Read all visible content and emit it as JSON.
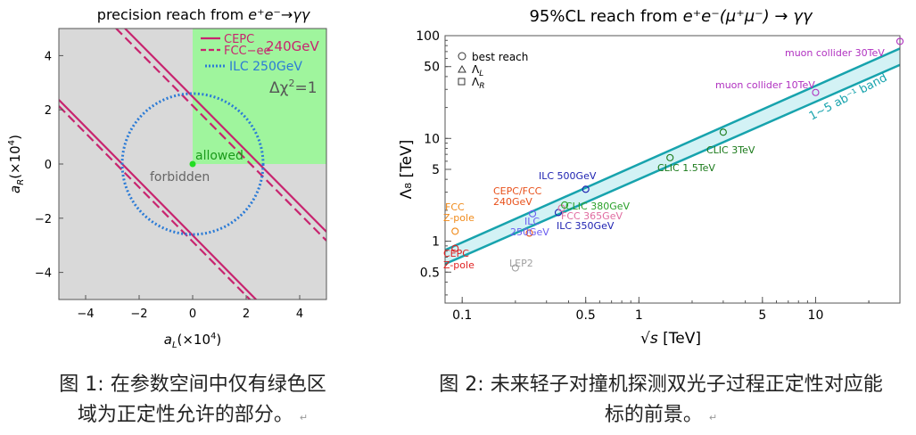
{
  "figure1": {
    "title_text": "precision reach from ",
    "title_math": "e⁺e⁻→γγ",
    "xlabel": "a_L(×10⁴)",
    "ylabel": "a_R(×10⁴)",
    "xlabel_main": "a",
    "xlabel_sub": "L",
    "xlabel_rest": "(×10",
    "xlabel_exp": "4",
    "xlabel_close": ")",
    "ylabel_main": "a",
    "ylabel_sub": "R",
    "ylabel_rest": "(×10",
    "ylabel_exp": "4",
    "ylabel_close": ")",
    "legend": {
      "cepc": "CEPC",
      "fcc": "FCC−ee",
      "energy1": "240GeV",
      "ilc": "ILC 250GeV",
      "chi": "Δχ",
      "chi_exp": "2",
      "chi_rest": "=1"
    },
    "labels": {
      "allowed": "allowed",
      "forbidden": "forbidden"
    },
    "colors": {
      "cepc": "#c8246f",
      "ilc": "#2b7bd6",
      "allowed": "#9ff59d",
      "forbidden": "#d9d9d9",
      "allowed_text": "#1a9a1a"
    },
    "chart_data": {
      "type": "region-plot",
      "xlim": [
        -5,
        5
      ],
      "ylim": [
        -5,
        5
      ],
      "xticks": [
        "−4",
        "−2",
        "0",
        "2",
        "4"
      ],
      "yticks": [
        "4",
        "2",
        "0",
        "−2",
        "−4"
      ],
      "xtick_values": [
        -4,
        -2,
        0,
        2,
        4
      ],
      "ytick_values": [
        4,
        2,
        0,
        -2,
        -4
      ],
      "allowed_region": {
        "x_min": 0,
        "y_min": 0
      },
      "series": [
        {
          "name": "CEPC",
          "style": "solid",
          "lines": [
            {
              "x1": -5,
              "y1": 7.5,
              "x2": 5,
              "y2": -2.5
            },
            {
              "x1": -5,
              "y1": 2.4,
              "x2": 5,
              "y2": -7.6
            }
          ]
        },
        {
          "name": "FCC−ee",
          "style": "dashed",
          "lines": [
            {
              "x1": -5,
              "y1": 7.7,
              "x2": 5,
              "y2": -2.3
            },
            {
              "x1": -5,
              "y1": 2.2,
              "x2": 5,
              "y2": -7.8
            }
          ]
        },
        {
          "name": "ILC 250GeV",
          "style": "dotted",
          "circle": {
            "cx": 0,
            "cy": 0,
            "r": 2.65
          }
        }
      ],
      "points": [
        {
          "x": 0,
          "y": 0,
          "label": "allowed"
        }
      ]
    }
  },
  "figure2": {
    "title_pre": "95%CL reach from ",
    "title_math": "e⁺e⁻(μ⁺μ⁻) → γγ",
    "xlabel": "√s [TeV]",
    "xlabel_sym": "√s",
    "xlabel_unit": " [TeV]",
    "ylabel": "Λ₈ [TeV]",
    "legend": {
      "best": "best reach",
      "lam_l": "Λ",
      "lam_l_sub": "L",
      "lam_r": "Λ",
      "lam_r_sub": "R"
    },
    "band_label": "1~5 ab⁻¹ band",
    "colors": {
      "band_fill": "#d3f2f5",
      "band_line": "#17a3ad"
    },
    "chart_data": {
      "type": "scatter",
      "xscale": "log",
      "yscale": "log",
      "xlim": [
        0.08,
        30
      ],
      "ylim": [
        0.25,
        100
      ],
      "xticks": [
        "0.1",
        "0.5",
        "1",
        "5",
        "10"
      ],
      "xtick_values": [
        0.1,
        0.5,
        1,
        5,
        10
      ],
      "yticks": [
        "100",
        "50",
        "10",
        "5",
        "1",
        "0.5"
      ],
      "ytick_values": [
        100,
        50,
        10,
        5,
        1,
        0.5
      ],
      "band": {
        "x": [
          0.08,
          30
        ],
        "lower": [
          0.6,
          52
        ],
        "upper": [
          0.82,
          75
        ]
      },
      "series": [
        {
          "name": "CEPC Z-pole",
          "color": "#e02020",
          "x": 0.0912,
          "y": 0.85
        },
        {
          "name": "FCC Z-pole",
          "color": "#f08a1a",
          "x": 0.0912,
          "y": 1.25
        },
        {
          "name": "CEPC/FCC 240GeV",
          "color": "#e8501a",
          "x": 0.24,
          "y": 1.2
        },
        {
          "name": "ILC 250GeV",
          "color": "#6a5cf0",
          "x": 0.25,
          "y": 1.85
        },
        {
          "name": "LEP2",
          "color": "#a0a0a0",
          "x": 0.2,
          "y": 0.55
        },
        {
          "name": "ILC 350GeV",
          "color": "#1b1fb0",
          "x": 0.35,
          "y": 1.9
        },
        {
          "name": "FCC 365GeV",
          "color": "#e06ca0",
          "x": 0.365,
          "y": 2.1
        },
        {
          "name": "CLIC 380GeV",
          "color": "#2aa02a",
          "x": 0.38,
          "y": 2.25
        },
        {
          "name": "ILC 500GeV",
          "color": "#1b1fb0",
          "x": 0.5,
          "y": 3.2
        },
        {
          "name": "CLIC 1.5TeV",
          "color": "#1a7a1a",
          "x": 1.5,
          "y": 6.5
        },
        {
          "name": "CLIC 3TeV",
          "color": "#1a7a1a",
          "x": 3.0,
          "y": 11.5
        },
        {
          "name": "muon collider 10TeV",
          "color": "#b030c0",
          "x": 10,
          "y": 28
        },
        {
          "name": "muon collider 30TeV",
          "color": "#b030c0",
          "x": 30,
          "y": 88
        }
      ]
    },
    "point_labels": {
      "cepc_z1": "CEPC",
      "cepc_z2": "Z-pole",
      "fcc_z1": "FCC",
      "fcc_z2": "Z-pole",
      "cepcfcc1": "CEPC/FCC",
      "cepcfcc2": "240GeV",
      "ilc250_1": "ILC",
      "ilc250_2": "250GeV",
      "lep2": "LEP2",
      "ilc350": "ILC 350GeV",
      "fcc365": "FCC 365GeV",
      "clic380": "CLIC 380GeV",
      "ilc500": "ILC 500GeV",
      "clic15": "CLIC 1.5TeV",
      "clic3": "CLIC 3TeV",
      "mu10": "muon collider 10TeV",
      "mu30": "muon collider 30TeV"
    }
  },
  "captions": {
    "cap1_line1": "图 1: 在参数空间中仅有绿色区",
    "cap1_line2": "域为正定性允许的部分。",
    "cap2_line1": "图 2: 未来轻子对撞机探测双光子过程正定性对应能",
    "cap2_line2": "标的前景。",
    "mark": "↵"
  }
}
